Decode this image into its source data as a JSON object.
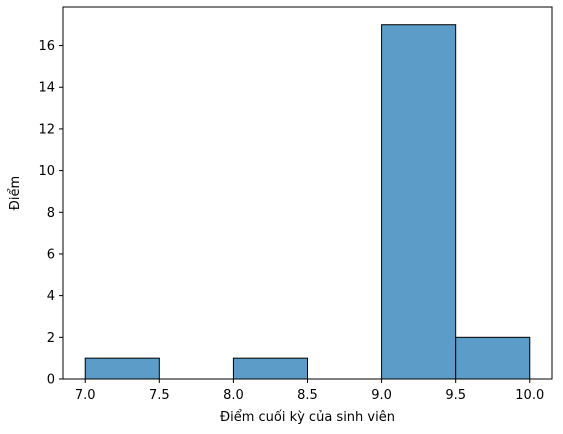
{
  "chart_data": {
    "type": "bar",
    "subtype": "histogram",
    "bins": [
      {
        "start": 7.0,
        "end": 7.5,
        "count": 1
      },
      {
        "start": 7.5,
        "end": 8.0,
        "count": 0
      },
      {
        "start": 8.0,
        "end": 8.5,
        "count": 1
      },
      {
        "start": 8.5,
        "end": 9.0,
        "count": 0
      },
      {
        "start": 9.0,
        "end": 9.5,
        "count": 17
      },
      {
        "start": 9.5,
        "end": 10.0,
        "count": 2
      }
    ],
    "xlabel": "Điểm cuối kỳ của sinh viên",
    "ylabel": "Điểm",
    "xticks": [
      "7.0",
      "7.5",
      "8.0",
      "8.5",
      "9.0",
      "9.5",
      "10.0"
    ],
    "yticks": [
      "0",
      "2",
      "4",
      "6",
      "8",
      "10",
      "12",
      "14",
      "16"
    ],
    "xlim": [
      6.85,
      10.15
    ],
    "ylim": [
      0,
      17.85
    ],
    "grid": false,
    "bar_color": "#5b9cc9",
    "edge_color": "#000000"
  }
}
